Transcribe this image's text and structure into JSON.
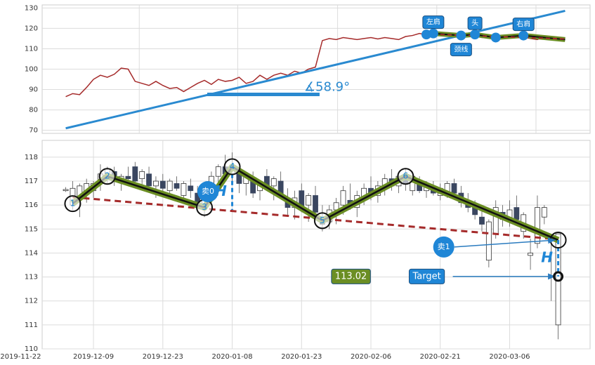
{
  "chart_data": [
    {
      "type": "line",
      "xlim": [
        -7.4,
        71.6
      ],
      "ylim": [
        68.5,
        131.5
      ],
      "yticks": [
        70,
        80,
        90,
        100,
        110,
        120,
        130
      ],
      "xgrid": [
        6.6,
        20.8,
        35.2,
        49.5,
        63.8
      ],
      "grid": true,
      "x": [
        -4,
        -3,
        -2,
        -1,
        0,
        1,
        2,
        3,
        4,
        5,
        6,
        7,
        8,
        9,
        10,
        11,
        12,
        13,
        14,
        15,
        16,
        17,
        18,
        19,
        20,
        21,
        22,
        23,
        24,
        25,
        26,
        27,
        28,
        29,
        30,
        31,
        32,
        33,
        34,
        35,
        36,
        37,
        38,
        39,
        40,
        41,
        42,
        43,
        44,
        45,
        46,
        47,
        48,
        49,
        50,
        51,
        52,
        53,
        54,
        55,
        56,
        57,
        58,
        59,
        60,
        61,
        62,
        63,
        64,
        65,
        66,
        67,
        68
      ],
      "values": [
        86.5,
        88,
        87.5,
        91,
        95,
        97,
        96,
        97.5,
        100.5,
        100,
        94,
        93,
        92,
        94,
        92,
        90.5,
        91,
        89,
        91,
        93,
        94.5,
        92.5,
        95,
        94,
        94.5,
        96,
        93,
        94,
        97,
        95,
        97,
        98,
        97,
        99,
        98,
        100,
        101,
        114,
        115,
        114.5,
        115.5,
        115,
        114.5,
        115,
        115.5,
        114.8,
        115.5,
        115,
        114.5,
        116,
        116.5,
        117.5,
        116.8,
        117.5,
        118,
        117,
        116.5,
        116,
        117,
        116.5,
        115.5,
        115.8,
        114.5,
        115,
        116,
        116.5,
        115.8,
        115,
        114.5,
        116,
        115,
        115.5,
        114.2
      ],
      "color": "#a52a2a",
      "trendline": {
        "x": [
          -4,
          68
        ],
        "y": [
          71,
          128.6
        ],
        "color": "#2a8ad0"
      },
      "angle": {
        "label": "∡58.9°",
        "x": [
          16.4,
          32.6
        ],
        "y": 87.6
      },
      "pattern": {
        "x": [
          48,
          49,
          53,
          55,
          58,
          62,
          68
        ],
        "y": [
          117,
          117.5,
          116.5,
          117,
          115.5,
          116.5,
          114.5
        ],
        "color": "#6b8e23"
      },
      "pattern_labels": [
        {
          "label": "左肩",
          "x": 49,
          "y": 117.5
        },
        {
          "label": "头",
          "x": 55,
          "y": 117
        },
        {
          "label": "颈线",
          "x": 53,
          "y": 116.5
        },
        {
          "label": "右肩",
          "x": 62,
          "y": 116.5
        }
      ],
      "neckline": {
        "x": [
          48,
          68
        ],
        "y": [
          117.2,
          114.8
        ],
        "color": "#a52a2a"
      }
    },
    {
      "type": "candlestick",
      "xlim": [
        -7.4,
        71.6
      ],
      "ylim": [
        110,
        118.7
      ],
      "yticks": [
        110,
        111,
        112,
        113,
        114,
        115,
        116,
        117,
        118
      ],
      "xticks": [
        {
          "value": -10.5,
          "label": "2019-11-22"
        },
        {
          "value": 0,
          "label": "2019-12-09"
        },
        {
          "value": 10,
          "label": "2019-12-23"
        },
        {
          "value": 20,
          "label": "2020-01-08"
        },
        {
          "value": 30,
          "label": "2020-01-23"
        },
        {
          "value": 40,
          "label": "2020-02-06"
        },
        {
          "value": 50,
          "label": "2020-02-21"
        },
        {
          "value": 60,
          "label": "2020-03-06"
        }
      ],
      "grid": true,
      "up_color": "#ffffff",
      "down_color": "#3a4660",
      "x": [
        -4,
        -3,
        -2,
        -1,
        0,
        1,
        2,
        3,
        4,
        5,
        6,
        7,
        8,
        9,
        10,
        11,
        12,
        13,
        14,
        15,
        16,
        17,
        18,
        19,
        20,
        21,
        22,
        23,
        24,
        25,
        26,
        27,
        28,
        29,
        30,
        31,
        32,
        33,
        34,
        35,
        36,
        37,
        38,
        39,
        40,
        41,
        42,
        43,
        44,
        45,
        46,
        47,
        48,
        49,
        50,
        51,
        52,
        53,
        54,
        55,
        56,
        57,
        58,
        59,
        60,
        61,
        62,
        63,
        64,
        65,
        66,
        67
      ],
      "open": [
        116.6,
        116.0,
        116.3,
        116.5,
        116.6,
        116.9,
        117.3,
        117.4,
        117.0,
        117.2,
        117.6,
        117.1,
        117.3,
        116.8,
        117.0,
        116.6,
        116.9,
        116.4,
        116.8,
        116.5,
        115.9,
        116.3,
        117.2,
        117.6,
        117.3,
        117.4,
        116.9,
        117.0,
        116.6,
        117.2,
        116.8,
        117.0,
        116.3,
        115.9,
        116.6,
        116.0,
        116.4,
        115.5,
        115.3,
        115.8,
        116.0,
        116.2,
        115.9,
        116.3,
        116.7,
        116.4,
        116.7,
        117.1,
        116.8,
        117.1,
        116.6,
        117.0,
        116.6,
        116.8,
        116.4,
        116.5,
        116.9,
        116.5,
        116.1,
        115.9,
        115.5,
        113.7,
        114.8,
        115.7,
        115.3,
        115.9,
        114.9,
        113.9,
        114.4,
        115.5,
        114.5,
        111.0
      ],
      "high": [
        116.75,
        117.0,
        116.9,
        117.1,
        117.0,
        117.7,
        117.6,
        117.6,
        117.3,
        117.6,
        117.8,
        117.5,
        117.6,
        117.2,
        117.3,
        117.1,
        117.2,
        117.0,
        117.1,
        116.8,
        116.4,
        117.4,
        117.7,
        118.1,
        118.2,
        117.6,
        117.3,
        117.4,
        117.0,
        117.5,
        117.2,
        117.4,
        116.7,
        116.6,
        116.9,
        116.5,
        116.8,
        116.0,
        116.0,
        116.3,
        116.8,
        116.9,
        116.6,
        116.9,
        117.2,
        117.0,
        117.3,
        117.5,
        117.3,
        117.5,
        117.4,
        117.2,
        117.0,
        117.0,
        116.9,
        117.0,
        117.1,
        116.8,
        116.5,
        116.2,
        115.9,
        115.4,
        116.2,
        116.0,
        116.2,
        116.4,
        115.7,
        114.6,
        116.4,
        116.0,
        114.8,
        114.8
      ],
      "low": [
        116.55,
        115.8,
        115.5,
        116.1,
        116.3,
        116.6,
        116.9,
        116.8,
        116.6,
        116.9,
        116.8,
        116.7,
        116.6,
        116.3,
        116.5,
        116.4,
        116.6,
        116.2,
        116.3,
        115.7,
        115.5,
        116.1,
        116.8,
        117.1,
        116.9,
        116.5,
        116.4,
        116.3,
        116.2,
        116.6,
        116.2,
        116.3,
        115.6,
        115.4,
        115.7,
        115.3,
        115.5,
        114.9,
        115.0,
        115.2,
        115.6,
        115.8,
        115.5,
        116.0,
        116.2,
        116.1,
        116.4,
        116.6,
        116.5,
        116.6,
        116.4,
        116.5,
        116.3,
        116.4,
        116.2,
        116.3,
        116.4,
        115.9,
        115.7,
        115.4,
        114.9,
        113.4,
        114.6,
        115.1,
        115.1,
        115.4,
        114.6,
        113.3,
        114.2,
        115.2,
        112.0,
        110.4
      ],
      "close": [
        116.65,
        116.7,
        116.8,
        116.9,
        116.9,
        117.3,
        117.5,
        117.0,
        117.2,
        117.1,
        117.0,
        117.4,
        116.8,
        117.0,
        116.7,
        117.0,
        116.7,
        116.9,
        116.6,
        115.9,
        116.2,
        117.2,
        117.6,
        117.3,
        117.6,
        116.9,
        117.2,
        116.5,
        116.9,
        116.8,
        117.1,
        116.4,
        115.9,
        116.3,
        115.9,
        116.4,
        115.7,
        115.2,
        115.8,
        116.1,
        116.6,
        115.9,
        116.4,
        116.7,
        116.4,
        116.8,
        117.1,
        116.8,
        117.2,
        116.9,
        117.2,
        116.6,
        116.8,
        116.5,
        116.7,
        116.9,
        116.5,
        116.1,
        115.9,
        115.6,
        115.2,
        115.3,
        115.9,
        115.4,
        115.8,
        115.4,
        115.6,
        114.0,
        115.9,
        115.9,
        114.6,
        114.8
      ],
      "zigzag": {
        "x": [
          -3,
          2,
          16,
          20,
          33,
          45,
          67
        ],
        "y": [
          116.06,
          117.2,
          115.9,
          117.6,
          115.35,
          117.2,
          114.54
        ],
        "labels": [
          "1",
          "2",
          "3",
          "4",
          "5",
          "6",
          null
        ],
        "color": "#6b8e23"
      },
      "trendline": {
        "x": [
          -3,
          67
        ],
        "y": [
          116.33,
          114.57
        ],
        "color": "#a52a2a"
      },
      "signals": [
        {
          "label": "卖0",
          "x": 16.5,
          "y": 116.56
        },
        {
          "label": "卖1",
          "x": 50.5,
          "y": 114.25
        }
      ],
      "h_label": "H",
      "h_lines": [
        {
          "x": 20,
          "y": [
            117.3,
            115.8
          ]
        },
        {
          "x": 67,
          "y": [
            114.54,
            113.02
          ]
        }
      ],
      "target": {
        "label": "Target",
        "value": 113.02,
        "color": "#6b8e23"
      }
    }
  ]
}
